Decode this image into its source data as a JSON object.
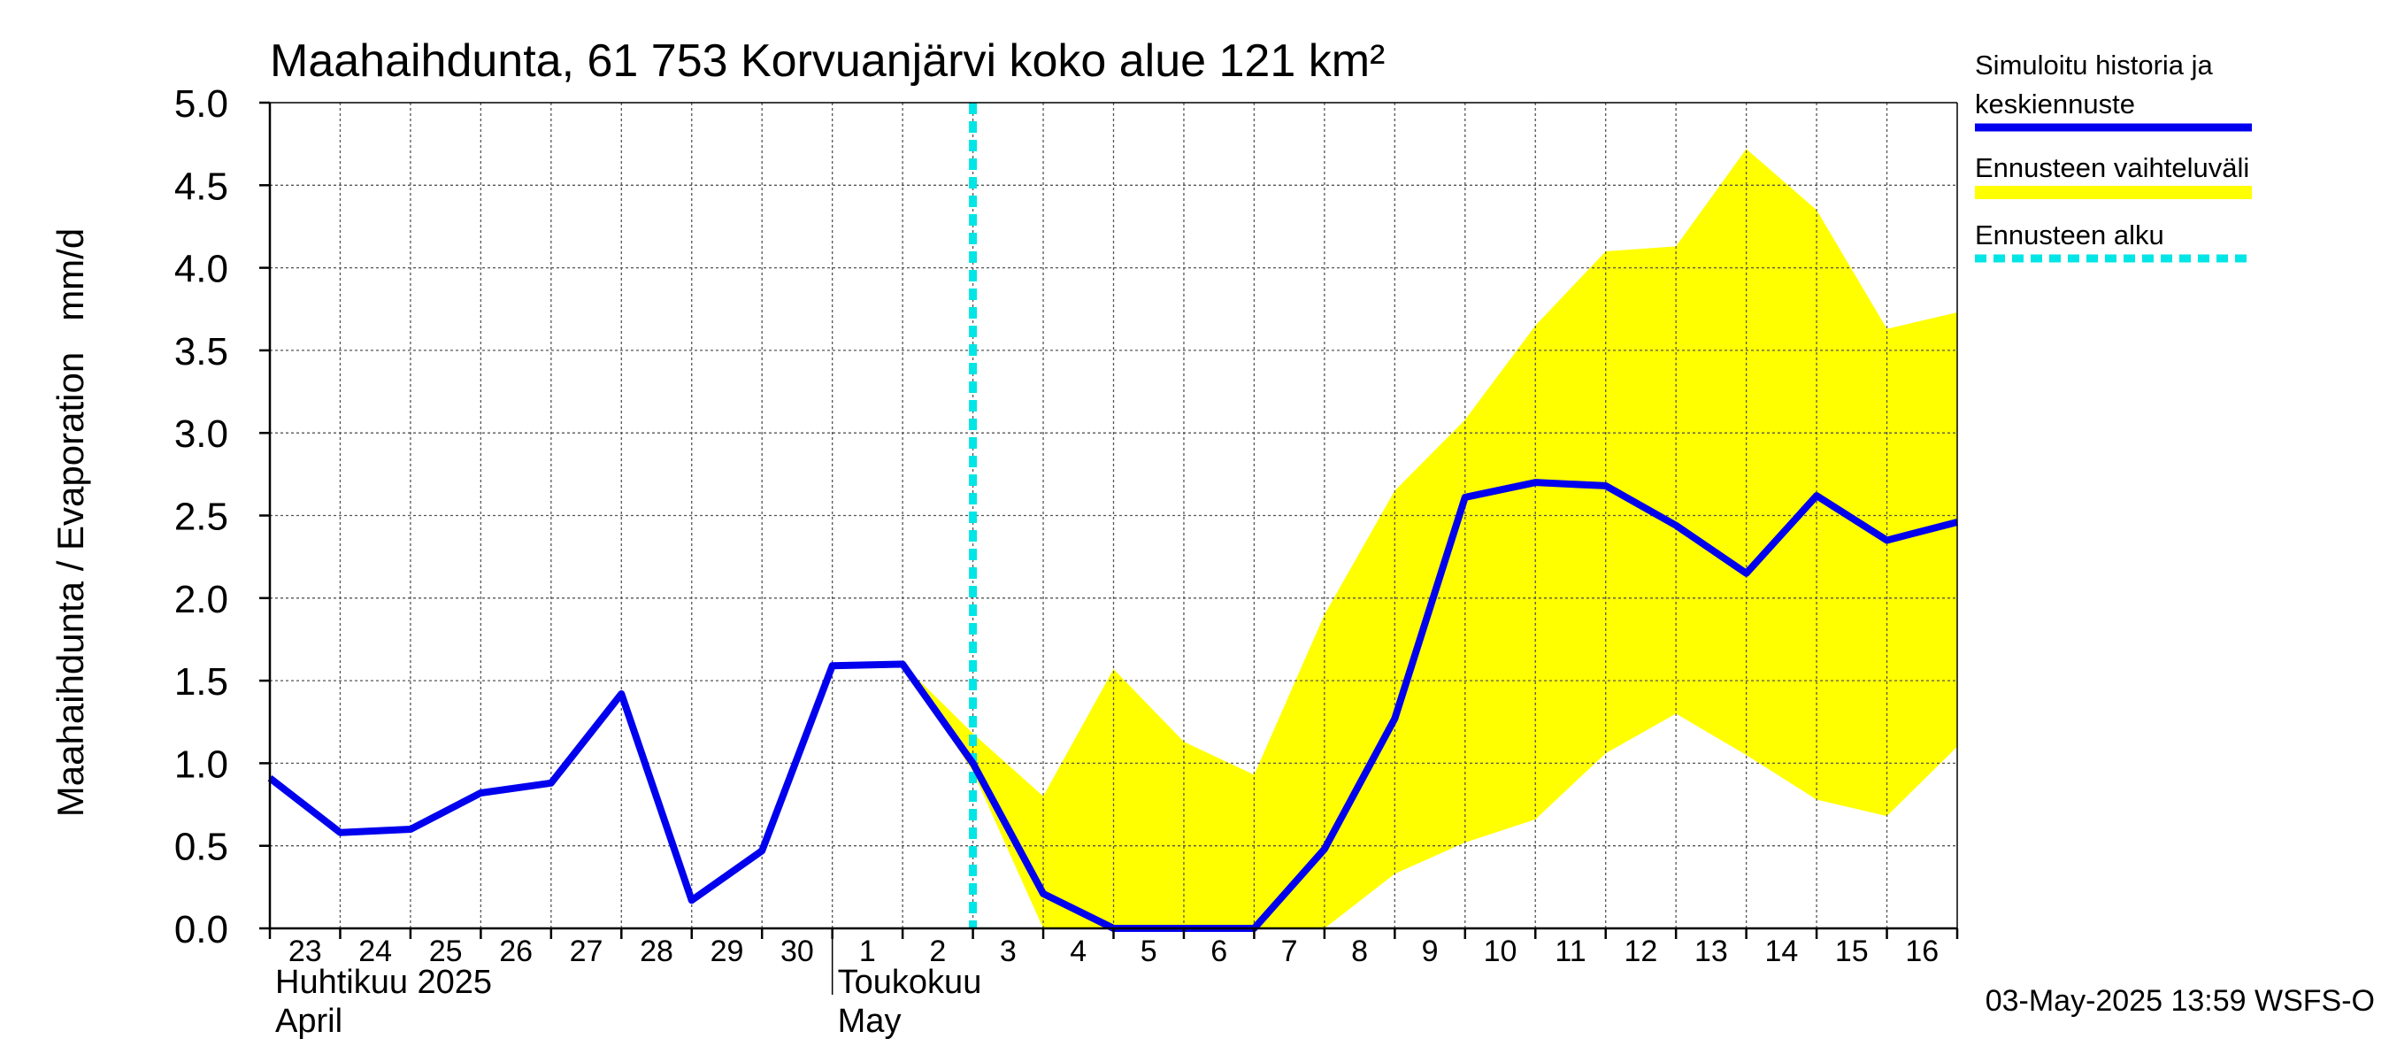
{
  "chart_data": {
    "type": "line",
    "title": "Maahaihdunta, 61 753 Korvuanjärvi koko alue 121 km²",
    "ylabel": "Maahaihdunta / Evaporation   mm/d",
    "ylim": [
      0,
      5
    ],
    "yticks": [
      "0.0",
      "0.5",
      "1.0",
      "1.5",
      "2.0",
      "2.5",
      "3.0",
      "3.5",
      "4.0",
      "4.5",
      "5.0"
    ],
    "xlim": [
      0,
      24
    ],
    "x_tick_labels": [
      "23",
      "24",
      "25",
      "26",
      "27",
      "28",
      "29",
      "30",
      "1",
      "2",
      "3",
      "4",
      "5",
      "6",
      "7",
      "8",
      "9",
      "10",
      "11",
      "12",
      "13",
      "14",
      "15",
      "16"
    ],
    "month_labels": [
      {
        "line1": "Huhtikuu  2025",
        "line2": "April",
        "start_day": 0
      },
      {
        "line1": "Toukokuu",
        "line2": "May",
        "start_day": 8
      }
    ],
    "forecast_start_x": 10,
    "series": [
      {
        "name": "Simuloitu historia ja keskiennuste",
        "color": "#0000ee",
        "x": [
          0,
          1,
          2,
          3,
          4,
          5,
          6,
          7,
          8,
          9,
          10,
          11,
          12,
          13,
          14,
          15,
          16,
          17,
          18,
          19,
          20,
          21,
          22,
          23,
          24
        ],
        "values": [
          0.91,
          0.58,
          0.6,
          0.82,
          0.88,
          1.42,
          0.17,
          0.47,
          1.59,
          1.6,
          1.0,
          0.21,
          0.0,
          0.0,
          0.0,
          0.48,
          1.27,
          2.61,
          2.7,
          2.68,
          2.44,
          2.15,
          2.62,
          2.35,
          2.46
        ]
      }
    ],
    "band": {
      "name": "Ennusteen vaihteluväli",
      "color": "#ffff00",
      "x": [
        9,
        10,
        11,
        12,
        13,
        14,
        15,
        16,
        17,
        18,
        19,
        20,
        21,
        22,
        23,
        24
      ],
      "upper": [
        1.6,
        1.18,
        0.8,
        1.57,
        1.13,
        0.93,
        1.9,
        2.65,
        3.08,
        3.65,
        4.1,
        4.13,
        4.72,
        4.35,
        3.63,
        3.73
      ],
      "lower": [
        1.6,
        0.95,
        0.0,
        0.0,
        0.0,
        0.0,
        0.0,
        0.33,
        0.52,
        0.66,
        1.06,
        1.3,
        1.05,
        0.78,
        0.68,
        1.1
      ]
    },
    "legend": {
      "position": "right",
      "items": [
        {
          "line1": "Simuloitu historia ja",
          "line2": "keskiennuste",
          "style": "solid",
          "color": "#0000ee"
        },
        {
          "line1": "Ennusteen vaihteluväli",
          "line2": "",
          "style": "band",
          "color": "#ffff00"
        },
        {
          "line1": "Ennusteen alku",
          "line2": "",
          "style": "dashed",
          "color": "#00e5e5"
        }
      ]
    },
    "footer": "03-May-2025 13:59 WSFS-O"
  }
}
